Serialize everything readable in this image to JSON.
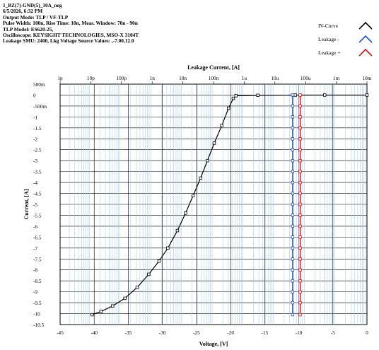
{
  "header": {
    "lines": [
      "1_BZ(7)-GND(5)_10A_neg",
      "6/5/2026, 6:32 PM",
      "Output Mode: TLP / VF-TLP",
      "Pulse Width: 100n, Rise Time: 10n, Meas. Window: 70n -  90n",
      "TLP Model: ES620-25,",
      "Oscilloscope: KEYSIGHT TECHNOLOGIES, MSO-X 3104T",
      "Leakage SMU: 2400, Lkg Voltage Source Values: ,-7.00,12.0"
    ]
  },
  "legend": [
    {
      "label": "IV-Curve",
      "color": "#000000",
      "icon": "curve-icon"
    },
    {
      "label": "Leakage -",
      "color": "#1f4fd1",
      "icon": "curve-icon"
    },
    {
      "label": "Leakage +",
      "color": "#e01010",
      "icon": "curve-icon"
    }
  ],
  "chart_data": {
    "type": "scatter",
    "xlabel": "Voltage, [V]",
    "ylabel": "Current, [A]",
    "x2label": "Leakage Current, [A]",
    "xlim": [
      -45,
      0
    ],
    "ylim": [
      -10.5,
      0.5
    ],
    "x2_log_range": [
      -12,
      -2
    ],
    "xticks": [
      {
        "v": -45,
        "label": "-45"
      },
      {
        "v": -40,
        "label": "-40"
      },
      {
        "v": -35,
        "label": "-35"
      },
      {
        "v": -30,
        "label": "-30"
      },
      {
        "v": -25,
        "label": "-25"
      },
      {
        "v": -20,
        "label": "-20"
      },
      {
        "v": -15,
        "label": "-15"
      },
      {
        "v": -10,
        "label": "-10"
      },
      {
        "v": -5,
        "label": "-5"
      },
      {
        "v": 0,
        "label": "0"
      }
    ],
    "yticks": [
      {
        "v": 0.5,
        "label": "500m"
      },
      {
        "v": 0,
        "label": "0"
      },
      {
        "v": -0.5,
        "label": "-500m"
      },
      {
        "v": -1,
        "label": "-1"
      },
      {
        "v": -1.5,
        "label": "-1.5"
      },
      {
        "v": -2,
        "label": "-2"
      },
      {
        "v": -2.5,
        "label": "-2.5"
      },
      {
        "v": -3,
        "label": "-3"
      },
      {
        "v": -3.5,
        "label": "-3.5"
      },
      {
        "v": -4,
        "label": "-4"
      },
      {
        "v": -4.5,
        "label": "-4.5"
      },
      {
        "v": -5,
        "label": "-5"
      },
      {
        "v": -5.5,
        "label": "-5.5"
      },
      {
        "v": -6,
        "label": "-6"
      },
      {
        "v": -6.5,
        "label": "-6.5"
      },
      {
        "v": -7,
        "label": "-7"
      },
      {
        "v": -7.5,
        "label": "-7.5"
      },
      {
        "v": -8,
        "label": "-8"
      },
      {
        "v": -8.5,
        "label": "-8.5"
      },
      {
        "v": -9,
        "label": "-9"
      },
      {
        "v": -9.5,
        "label": "-9.5"
      },
      {
        "v": -10,
        "label": "-10"
      },
      {
        "v": -10.5,
        "label": "-10.5"
      }
    ],
    "x2ticks": [
      {
        "e": -12,
        "label": "1p"
      },
      {
        "e": -11,
        "label": "10p"
      },
      {
        "e": -10,
        "label": "100p"
      },
      {
        "e": -9,
        "label": "1n"
      },
      {
        "e": -8,
        "label": "10n"
      },
      {
        "e": -7,
        "label": "100n"
      },
      {
        "e": -6,
        "label": "1u"
      },
      {
        "e": -5,
        "label": "10u"
      },
      {
        "e": -4,
        "label": "100u"
      },
      {
        "e": -3,
        "label": "1m"
      },
      {
        "e": -2,
        "label": "10m"
      }
    ],
    "grid": true,
    "legend_position": "top-right",
    "series": [
      {
        "name": "IV-Curve",
        "color": "#000000",
        "points": [
          [
            0,
            0
          ],
          [
            -6.2,
            0
          ],
          [
            -10.5,
            0
          ],
          [
            -16,
            -0.01
          ],
          [
            -19.2,
            -0.03
          ],
          [
            -19.6,
            -0.15
          ],
          [
            -20.3,
            -0.6
          ],
          [
            -21.3,
            -1.4
          ],
          [
            -22.4,
            -2.2
          ],
          [
            -23.4,
            -3.0
          ],
          [
            -24.4,
            -3.8
          ],
          [
            -25.5,
            -4.6
          ],
          [
            -26.6,
            -5.4
          ],
          [
            -27.8,
            -6.2
          ],
          [
            -29.2,
            -7.0
          ],
          [
            -30.5,
            -7.6
          ],
          [
            -32.0,
            -8.2
          ],
          [
            -33.7,
            -8.8
          ],
          [
            -35.5,
            -9.3
          ],
          [
            -37.3,
            -9.65
          ],
          [
            -39.0,
            -9.9
          ],
          [
            -40.3,
            -10.05
          ]
        ]
      },
      {
        "name": "Leakage -",
        "color": "#1f4fd1",
        "points": [
          [
            -10.9,
            0
          ],
          [
            -10.9,
            -0.5
          ],
          [
            -10.9,
            -1
          ],
          [
            -10.9,
            -1.5
          ],
          [
            -10.9,
            -2
          ],
          [
            -10.9,
            -2.5
          ],
          [
            -10.9,
            -3
          ],
          [
            -10.9,
            -3.5
          ],
          [
            -10.9,
            -4
          ],
          [
            -10.9,
            -4.5
          ],
          [
            -10.9,
            -5
          ],
          [
            -10.9,
            -5.5
          ],
          [
            -10.9,
            -6
          ],
          [
            -10.9,
            -6.5
          ],
          [
            -10.9,
            -7
          ],
          [
            -10.9,
            -7.5
          ],
          [
            -10.9,
            -8
          ],
          [
            -10.9,
            -8.5
          ],
          [
            -10.9,
            -9
          ],
          [
            -10.9,
            -9.5
          ],
          [
            -10.9,
            -10.05
          ]
        ]
      },
      {
        "name": "Leakage +",
        "color": "#e01010",
        "points": [
          [
            -9.8,
            0
          ],
          [
            -9.8,
            -0.5
          ],
          [
            -9.8,
            -1
          ],
          [
            -9.8,
            -1.5
          ],
          [
            -9.8,
            -2
          ],
          [
            -9.8,
            -2.5
          ],
          [
            -9.8,
            -3
          ],
          [
            -9.8,
            -3.5
          ],
          [
            -9.8,
            -4
          ],
          [
            -9.8,
            -4.5
          ],
          [
            -9.8,
            -5
          ],
          [
            -9.8,
            -5.5
          ],
          [
            -9.8,
            -6
          ],
          [
            -9.8,
            -6.5
          ],
          [
            -9.8,
            -7
          ],
          [
            -9.8,
            -7.5
          ],
          [
            -9.8,
            -8
          ],
          [
            -9.8,
            -8.5
          ],
          [
            -9.8,
            -9
          ],
          [
            -9.8,
            -9.5
          ],
          [
            -9.8,
            -10.05
          ]
        ]
      }
    ]
  }
}
